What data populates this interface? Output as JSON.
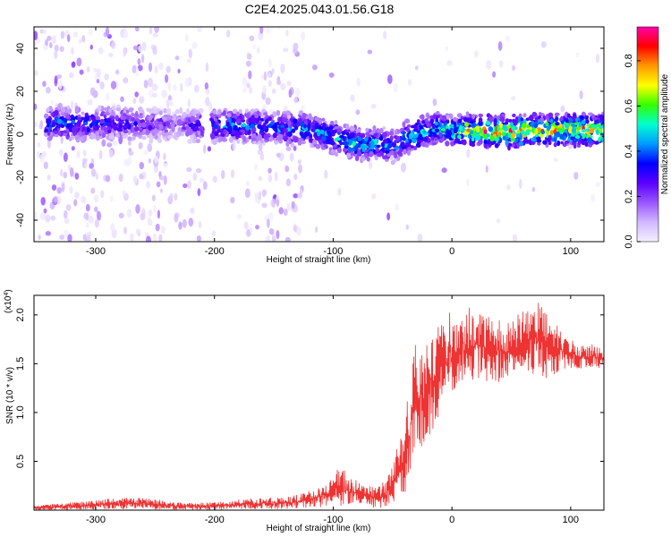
{
  "title": "C2E4.2025.043.01.56.G18",
  "colors": {
    "snr_line": "#ee3333",
    "colormap": [
      "#f4f0ff",
      "#d2b7ff",
      "#9a55ff",
      "#5a00ff",
      "#0000ff",
      "#0099ff",
      "#00ffd0",
      "#33ff00",
      "#ffff00",
      "#ff9900",
      "#ff0000",
      "#ff00aa"
    ]
  },
  "chart_data": [
    {
      "type": "heatmap",
      "xlabel": "Height of straight line (km)",
      "ylabel": "Frequency (Hz)",
      "xlim": [
        -352,
        128
      ],
      "ylim": [
        -50,
        50
      ],
      "xticks": [
        -300,
        -200,
        -100,
        0,
        100
      ],
      "yticks": [
        -40,
        -20,
        0,
        20,
        40
      ],
      "colorbar": {
        "label": "Normalized spectral amplitude",
        "range": [
          0.0,
          0.95
        ],
        "ticks": [
          "0.0",
          "0.2",
          "0.4",
          "0.6",
          "0.8"
        ],
        "tick_values": [
          0.0,
          0.2,
          0.4,
          0.6,
          0.8
        ]
      },
      "signal_track": {
        "x": [
          -330,
          -300,
          -260,
          -230,
          -205,
          -180,
          -150,
          -120,
          -95,
          -75,
          -60,
          -48,
          -40,
          -25,
          -10,
          0,
          20,
          50,
          80,
          128
        ],
        "frequency": [
          5,
          5,
          5,
          4,
          4,
          4,
          3,
          2,
          -2,
          -5,
          -4,
          -6,
          -2,
          1,
          3,
          1,
          2,
          1,
          2,
          2
        ],
        "peak_amplitude": [
          0.45,
          0.4,
          0.3,
          0.2,
          0.45,
          0.5,
          0.45,
          0.5,
          0.55,
          0.6,
          0.5,
          0.45,
          0.55,
          0.6,
          0.6,
          0.65,
          0.85,
          0.9,
          0.8,
          0.85
        ]
      }
    },
    {
      "type": "line",
      "xlabel": "Height of straight line (km)",
      "ylabel": "SNR (10 * v/v)",
      "exponent_label": "(x10",
      "exponent_power": "4",
      "exponent_close": ")",
      "xlim": [
        -352,
        128
      ],
      "ylim": [
        0,
        2.2
      ],
      "xticks": [
        -300,
        -200,
        -100,
        0,
        100
      ],
      "yticks": [
        "0.5",
        "1.0",
        "1.5",
        "2.0"
      ],
      "ytick_values": [
        0.5,
        1.0,
        1.5,
        2.0
      ],
      "series": [
        {
          "x": [
            -352,
            -320,
            -290,
            -260,
            -230,
            -200,
            -170,
            -140,
            -120,
            -105,
            -95,
            -85,
            -75,
            -65,
            -55,
            -45,
            -40,
            -35,
            -30,
            -25,
            -20,
            -15,
            -10,
            -5,
            0,
            10,
            20,
            30,
            40,
            50,
            60,
            70,
            80,
            90,
            100,
            110,
            120,
            128
          ],
          "low": [
            0.0,
            0.0,
            0.01,
            0.01,
            0.0,
            0.0,
            0.01,
            0.01,
            0.02,
            0.03,
            0.04,
            0.03,
            0.02,
            0.01,
            0.02,
            0.05,
            0.15,
            0.25,
            0.45,
            0.65,
            0.75,
            0.85,
            1.0,
            1.05,
            1.15,
            1.25,
            1.35,
            1.3,
            1.3,
            1.35,
            1.4,
            1.35,
            1.35,
            1.4,
            1.45,
            1.45,
            1.45,
            1.45
          ],
          "high": [
            0.05,
            0.08,
            0.12,
            0.13,
            0.08,
            0.08,
            0.12,
            0.13,
            0.2,
            0.28,
            0.45,
            0.35,
            0.28,
            0.25,
            0.3,
            0.7,
            0.9,
            1.4,
            1.85,
            1.65,
            1.85,
            1.9,
            1.9,
            2.0,
            2.05,
            2.1,
            2.05,
            2.0,
            1.95,
            1.95,
            2.05,
            2.2,
            2.0,
            1.9,
            1.75,
            1.7,
            1.7,
            1.65
          ]
        }
      ]
    }
  ]
}
